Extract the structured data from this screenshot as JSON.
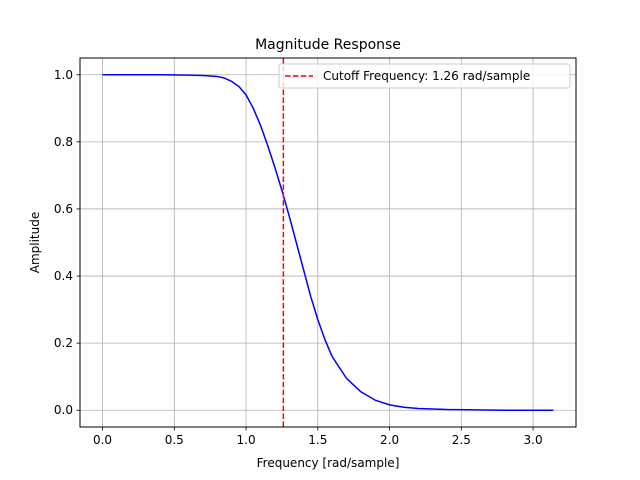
{
  "chart_data": {
    "type": "line",
    "title": "Magnitude Response",
    "xlabel": "Frequency [rad/sample]",
    "ylabel": "Amplitude",
    "xlim": [
      -0.157,
      3.299
    ],
    "ylim": [
      -0.05,
      1.05
    ],
    "xticks": [
      0.0,
      0.5,
      1.0,
      1.5,
      2.0,
      2.5,
      3.0
    ],
    "xtick_labels": [
      "0.0",
      "0.5",
      "1.0",
      "1.5",
      "2.0",
      "2.5",
      "3.0"
    ],
    "yticks": [
      0.0,
      0.2,
      0.4,
      0.6,
      0.8,
      1.0
    ],
    "ytick_labels": [
      "0.0",
      "0.2",
      "0.4",
      "0.6",
      "0.8",
      "1.0"
    ],
    "grid": true,
    "legend_position": "top-right",
    "series": [
      {
        "name": "",
        "color": "#0000ff",
        "style": "solid",
        "x": [
          0.0,
          0.2,
          0.4,
          0.6,
          0.7,
          0.8,
          0.85,
          0.9,
          0.95,
          1.0,
          1.05,
          1.1,
          1.15,
          1.2,
          1.25,
          1.3,
          1.35,
          1.4,
          1.45,
          1.5,
          1.55,
          1.6,
          1.7,
          1.8,
          1.9,
          2.0,
          2.1,
          2.2,
          2.4,
          2.6,
          2.8,
          3.0,
          3.1416
        ],
        "y": [
          1.0,
          1.0,
          1.0,
          0.999,
          0.998,
          0.995,
          0.99,
          0.98,
          0.965,
          0.94,
          0.9,
          0.85,
          0.79,
          0.725,
          0.655,
          0.58,
          0.5,
          0.42,
          0.34,
          0.27,
          0.21,
          0.16,
          0.095,
          0.055,
          0.03,
          0.016,
          0.009,
          0.005,
          0.002,
          0.001,
          0.0,
          0.0,
          0.0
        ]
      },
      {
        "name": "Cutoff Frequency: 1.26 rad/sample",
        "color": "#ff0000",
        "style": "dashed",
        "vertical_line_x": 1.26
      }
    ]
  }
}
